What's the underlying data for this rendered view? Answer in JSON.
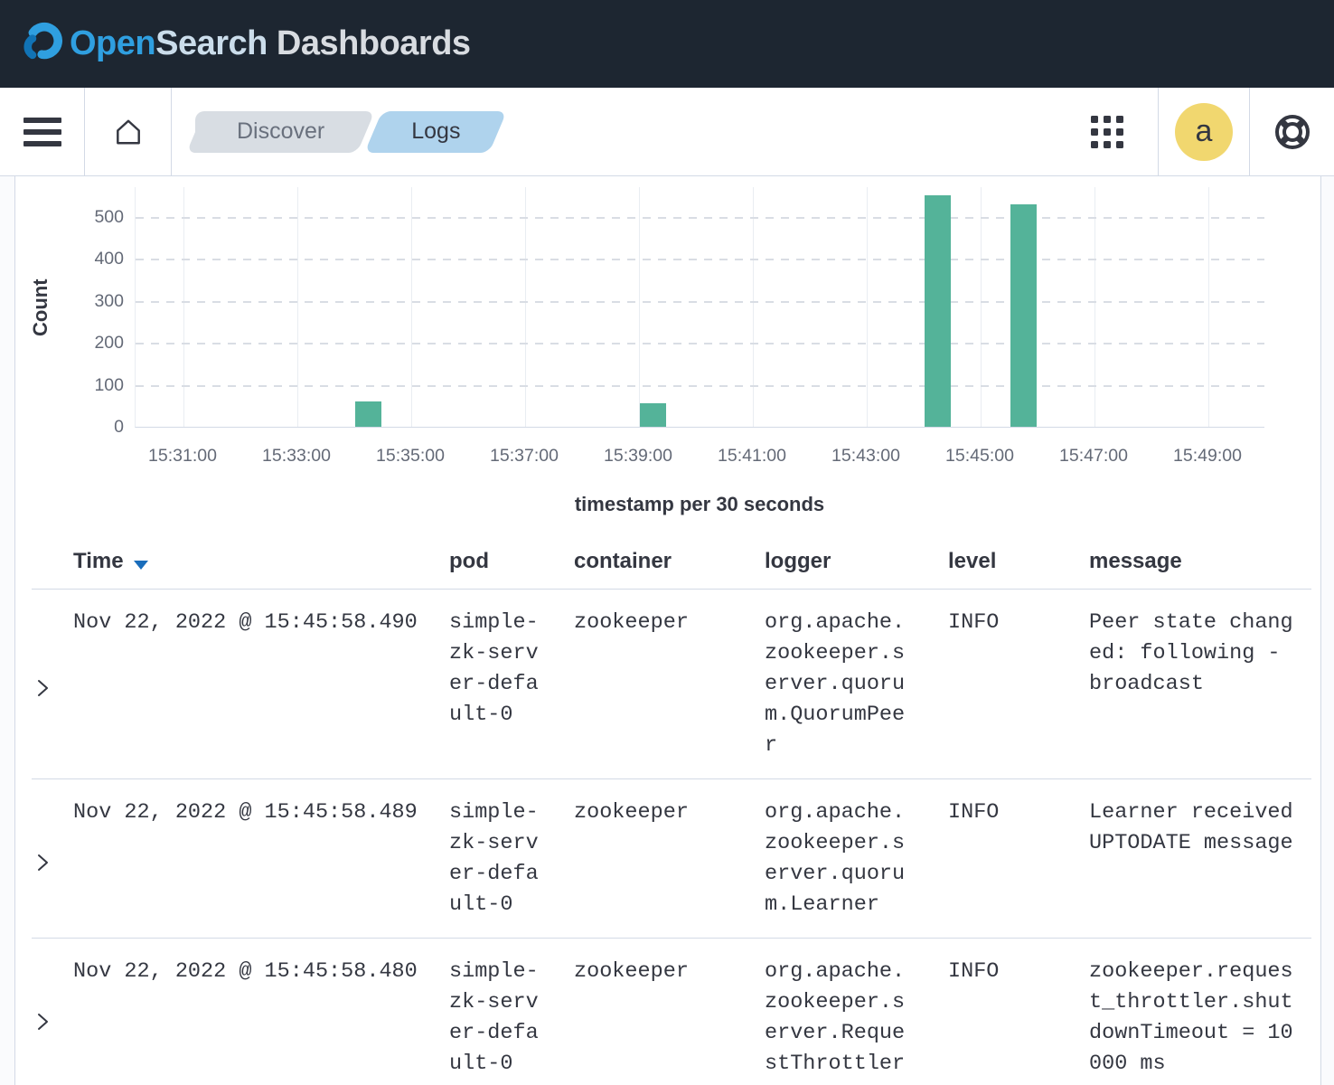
{
  "app": {
    "brand_open": "Open",
    "brand_search": "Search",
    "brand_suffix": " Dashboards"
  },
  "nav": {
    "breadcrumbs": [
      {
        "label": "Discover",
        "active": false
      },
      {
        "label": "Logs",
        "active": true
      }
    ],
    "avatar_initial": "a",
    "icons": [
      "hamburger-menu-icon",
      "home-icon",
      "apps-grid-icon",
      "help-icon"
    ]
  },
  "chart_data": {
    "type": "bar",
    "title": "",
    "xlabel": "timestamp per 30 seconds",
    "ylabel": "Count",
    "x": [
      "15:34:00",
      "15:39:00",
      "15:44:00",
      "15:45:30"
    ],
    "values": [
      60,
      55,
      550,
      530
    ],
    "bucket_interval_seconds": 30,
    "xticks": [
      "15:31:00",
      "15:33:00",
      "15:35:00",
      "15:37:00",
      "15:39:00",
      "15:41:00",
      "15:43:00",
      "15:45:00",
      "15:47:00",
      "15:49:00"
    ],
    "yticks": [
      0,
      100,
      200,
      300,
      400,
      500
    ],
    "ylim": [
      0,
      570
    ],
    "bar_color": "#54B399",
    "grid": true,
    "legend": "none"
  },
  "table": {
    "headers": [
      "Time",
      "pod",
      "container",
      "logger",
      "level",
      "message"
    ],
    "sort": {
      "column": "Time",
      "direction": "desc"
    },
    "rows": [
      {
        "time": "Nov 22, 2022 @ 15:45:58.490",
        "pod": "simple-zk-server-default-0",
        "container": "zookeeper",
        "logger": "org.apache.zookeeper.server.quorum.QuorumPeer",
        "level": "INFO",
        "message": "Peer state changed: following - broadcast"
      },
      {
        "time": "Nov 22, 2022 @ 15:45:58.489",
        "pod": "simple-zk-server-default-0",
        "container": "zookeeper",
        "logger": "org.apache.zookeeper.server.quorum.Learner",
        "level": "INFO",
        "message": "Learner received UPTODATE message"
      },
      {
        "time": "Nov 22, 2022 @ 15:45:58.480",
        "pod": "simple-zk-server-default-0",
        "container": "zookeeper",
        "logger": "org.apache.zookeeper.server.RequestThrottler",
        "level": "INFO",
        "message": "zookeeper.request_throttler.shutdownTimeout = 10000 ms"
      }
    ]
  }
}
